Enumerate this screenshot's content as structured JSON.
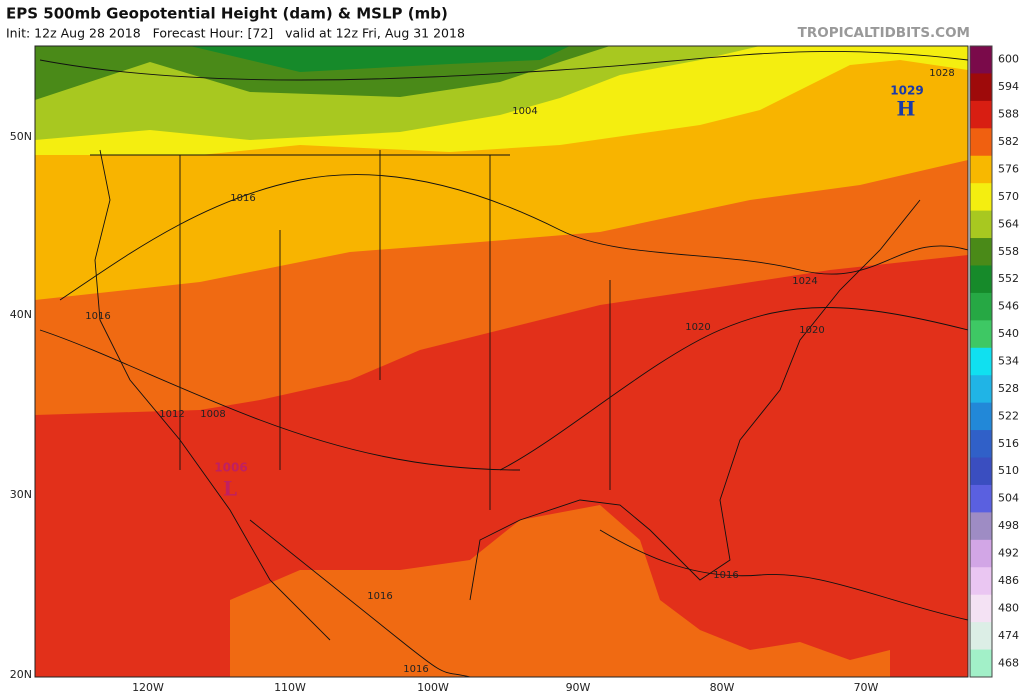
{
  "header": {
    "title": "EPS 500mb Geopotential Height (dam) & MSLP (mb)",
    "subtitle": "Init: 12z Aug 28 2018   Forecast Hour: [72]   valid at 12z Fri, Aug 31 2018",
    "watermark": "TROPICALTIDBITS.COM"
  },
  "colorbar": {
    "values": [
      600,
      594,
      588,
      582,
      576,
      570,
      564,
      558,
      552,
      546,
      540,
      534,
      528,
      522,
      516,
      510,
      504,
      498,
      492,
      486,
      480,
      474,
      468
    ],
    "colors": [
      "#7a0a4a",
      "#9e0a0a",
      "#d81e12",
      "#f06010",
      "#f8b800",
      "#f4ee10",
      "#a8c820",
      "#4a8a18",
      "#168a2a",
      "#26a844",
      "#3ec864",
      "#10e0f0",
      "#20b4e6",
      "#2288d8",
      "#3060c8",
      "#3a4ec0",
      "#5a60e0",
      "#9e8cc4",
      "#d2a6e6",
      "#eac6f2",
      "#f4e2f4",
      "#dceee6",
      "#a2f0c8"
    ]
  },
  "map": {
    "lat_labels": [
      "50N",
      "40N",
      "30N",
      "20N"
    ],
    "lon_labels": [
      "120W",
      "110W",
      "100W",
      "90W",
      "80W",
      "70W"
    ],
    "pressure_labels": [
      "1028",
      "1004",
      "1016",
      "1016",
      "1024",
      "1020",
      "1020",
      "1012",
      "1008",
      "1016",
      "1016",
      "1016"
    ],
    "high": {
      "value": "1029",
      "symbol": "H"
    },
    "low": {
      "value": "1006",
      "symbol": "L"
    }
  }
}
